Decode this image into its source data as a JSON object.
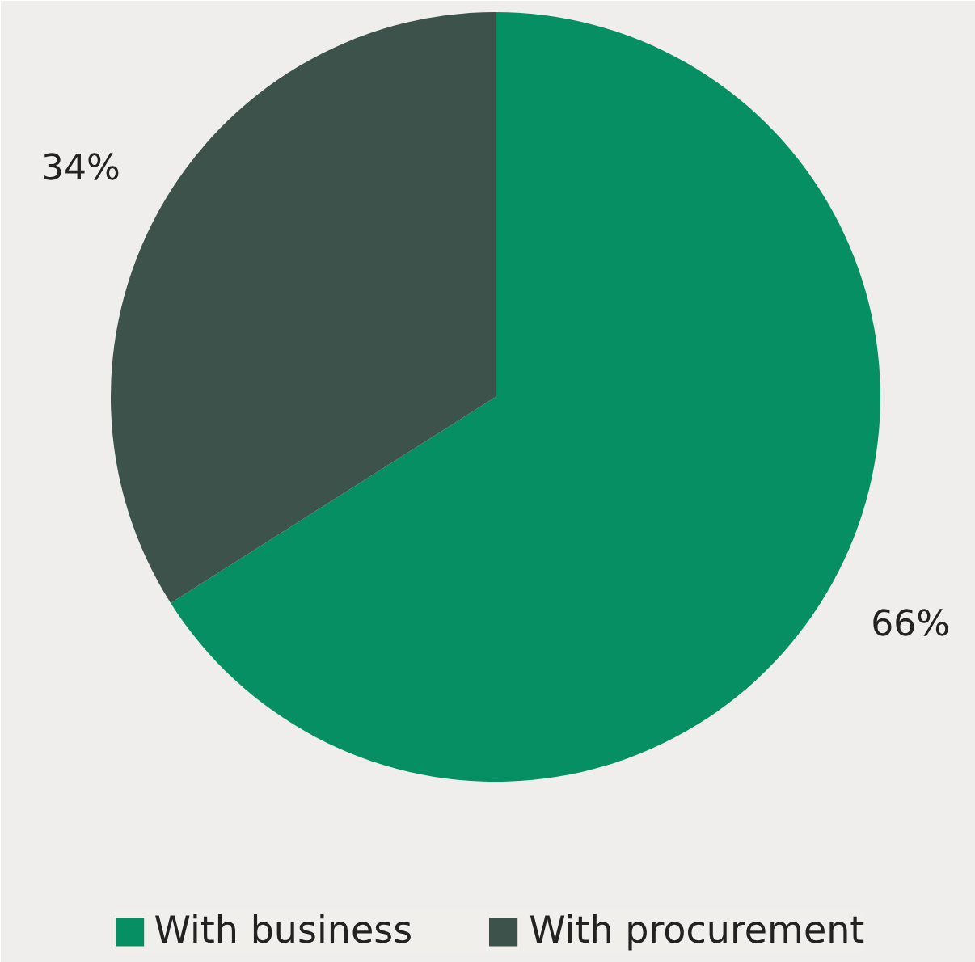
{
  "chart_data": {
    "type": "pie",
    "categories": [
      "With business",
      "With procurement"
    ],
    "values": [
      66,
      34
    ],
    "colors": [
      "#068f62",
      "#3c524b"
    ],
    "value_labels": [
      "66%",
      "34%"
    ],
    "legend": "bottom"
  }
}
